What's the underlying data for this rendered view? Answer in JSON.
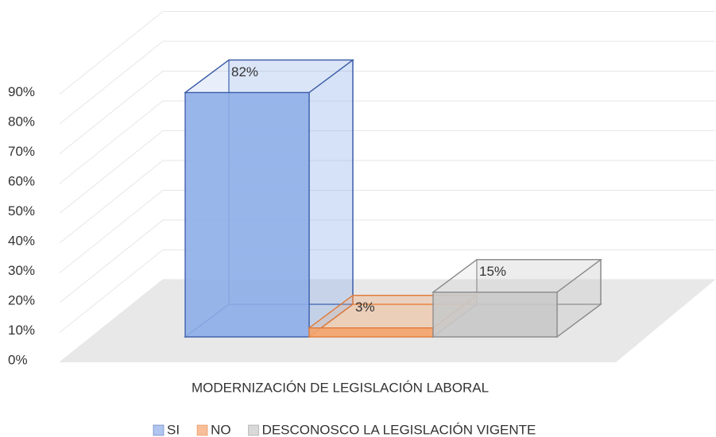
{
  "chart_data": {
    "type": "bar3d",
    "categories": [
      "MODERNIZACIÓN DE LEGISLACIÓN LABORAL"
    ],
    "series": [
      {
        "name": "SI",
        "color": "#8eaee8",
        "stroke": "#3b5ca8",
        "values": [
          82
        ],
        "value_labels": [
          "82%"
        ]
      },
      {
        "name": "NO",
        "color": "#f4a36b",
        "stroke": "#e07b39",
        "values": [
          3
        ],
        "value_labels": [
          "3%"
        ]
      },
      {
        "name": "DESCONOSCO LA LEGISLACIÓN VIGENTE",
        "color": "#c9c9c9",
        "stroke": "#8a8a8a",
        "values": [
          15
        ],
        "value_labels": [
          "15%"
        ]
      }
    ],
    "ylim": [
      0,
      90
    ],
    "yticks": [
      {
        "value": 0,
        "label": "0%"
      },
      {
        "value": 10,
        "label": "10%"
      },
      {
        "value": 20,
        "label": "20%"
      },
      {
        "value": 30,
        "label": "30%"
      },
      {
        "value": 40,
        "label": "40%"
      },
      {
        "value": 50,
        "label": "50%"
      },
      {
        "value": 60,
        "label": "60%"
      },
      {
        "value": 70,
        "label": "70%"
      },
      {
        "value": 80,
        "label": "80%"
      },
      {
        "value": 90,
        "label": "90%"
      }
    ],
    "grid": true,
    "legend": "bottom"
  }
}
